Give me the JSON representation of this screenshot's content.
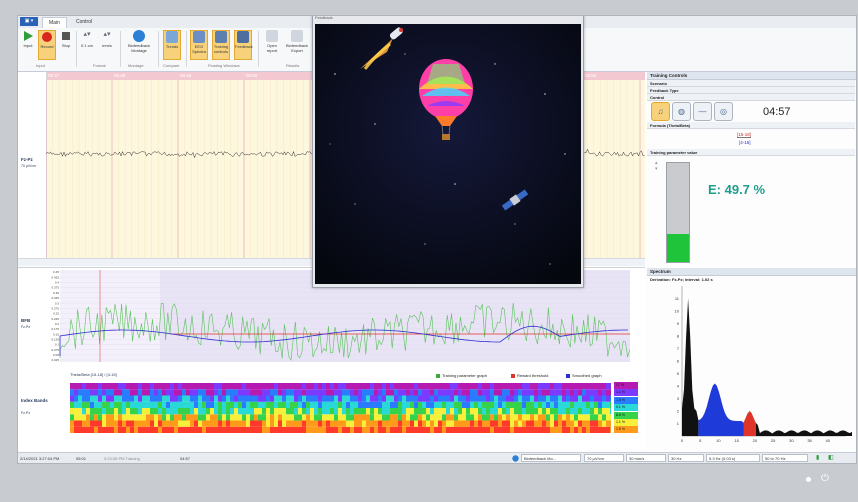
{
  "ribbon": {
    "app_button": "▣ ▾",
    "tabs": [
      {
        "label": "Main"
      },
      {
        "label": "Control"
      }
    ],
    "buttons": [
      {
        "label": "Input"
      },
      {
        "label": "Record"
      },
      {
        "label": "Stop"
      },
      {
        "label": "0.1 cm"
      },
      {
        "label": "mm/s"
      },
      {
        "label": "Biofeedback Montage"
      },
      {
        "label": "Trends"
      },
      {
        "label": "EEG Spectra"
      },
      {
        "label": "Training controls"
      },
      {
        "label": "Feedback"
      },
      {
        "label": "Open report"
      },
      {
        "label": "Biofeedback Export"
      }
    ],
    "groups": [
      {
        "label": "Input"
      },
      {
        "label": "Format"
      },
      {
        "label": "Montage"
      },
      {
        "label": "Compare"
      },
      {
        "label": "Floating Windows"
      },
      {
        "label": "Results"
      }
    ]
  },
  "eeg": {
    "time_ticks": [
      "05:47",
      "05:48",
      "05:49",
      "05:50",
      "05:55"
    ],
    "channel_label": "Fz-Pz",
    "channel_scale": "70 µV/cm",
    "colors": {
      "band": "#f4c8d0",
      "paper": "#fdf7dd"
    }
  },
  "trend": {
    "label": "BFB",
    "sublabel": "Fz-Pz",
    "y_ticks": [
      "0.45",
      "0.425",
      "0.4",
      "0.375",
      "0.35",
      "0.325",
      "0.3",
      "0.275",
      "0.25",
      "0.225",
      "0.2",
      "0.175",
      "0.15",
      "0.125",
      "0.1",
      "0.075",
      "0.05",
      "0.025"
    ],
    "caption": "Theta/Beta [15-18] / [4-15]",
    "legend": [
      {
        "label": "Training parameter graph",
        "color": "#3aa93a"
      },
      {
        "label": "Reward threshold",
        "color": "#e0332a"
      },
      {
        "label": "Smoothed graph",
        "color": "#2c2fd0"
      }
    ]
  },
  "index_bands": {
    "label": "Index Bands",
    "sublabel": "Fz-Pz",
    "percent_labels": [
      "17 %",
      "1.1 %",
      "1.5 %",
      "0.1 %",
      "8.8 %",
      "1.1 %",
      "1.5 %"
    ]
  },
  "training": {
    "panel_title": "Training Controls",
    "sections": [
      {
        "label": "Scenario"
      },
      {
        "label": "Feedback Type"
      },
      {
        "label": "Control"
      }
    ],
    "timer": "04:57",
    "formula_label": "Formula (Theta/Beta)",
    "formula_numerator": "[15-18]",
    "formula_denominator": "[4-15]",
    "param_section": "Training parameter value",
    "value_text": "E: 49.7 %",
    "level": 0.28
  },
  "spectrum": {
    "panel_title": "Spectrum",
    "subtitle": "Derivation: Fz-Pz; Interval: 1.02 s",
    "y_ticks": [
      "11",
      "10",
      "9",
      "8",
      "7",
      "6",
      "5",
      "4",
      "3",
      "2",
      "1"
    ],
    "x_ticks": [
      "0",
      "5",
      "10",
      "15",
      "20",
      "25",
      "30",
      "35",
      "40"
    ]
  },
  "feedback_window": {
    "title": "Feedback"
  },
  "status": {
    "datetime": "2/14/2021 3:27:04 PM",
    "elapsed": "05:01",
    "recording": "3:23:08 PM Training",
    "time2": "04:57",
    "montage": "Biofeedback Mo...",
    "scale": "70 µV/cm",
    "speed": "30 mm/s",
    "lf": "30 Hz",
    "tc": "5.3 Hz (0.03 s)",
    "hf": "50 to 70 Hz"
  }
}
